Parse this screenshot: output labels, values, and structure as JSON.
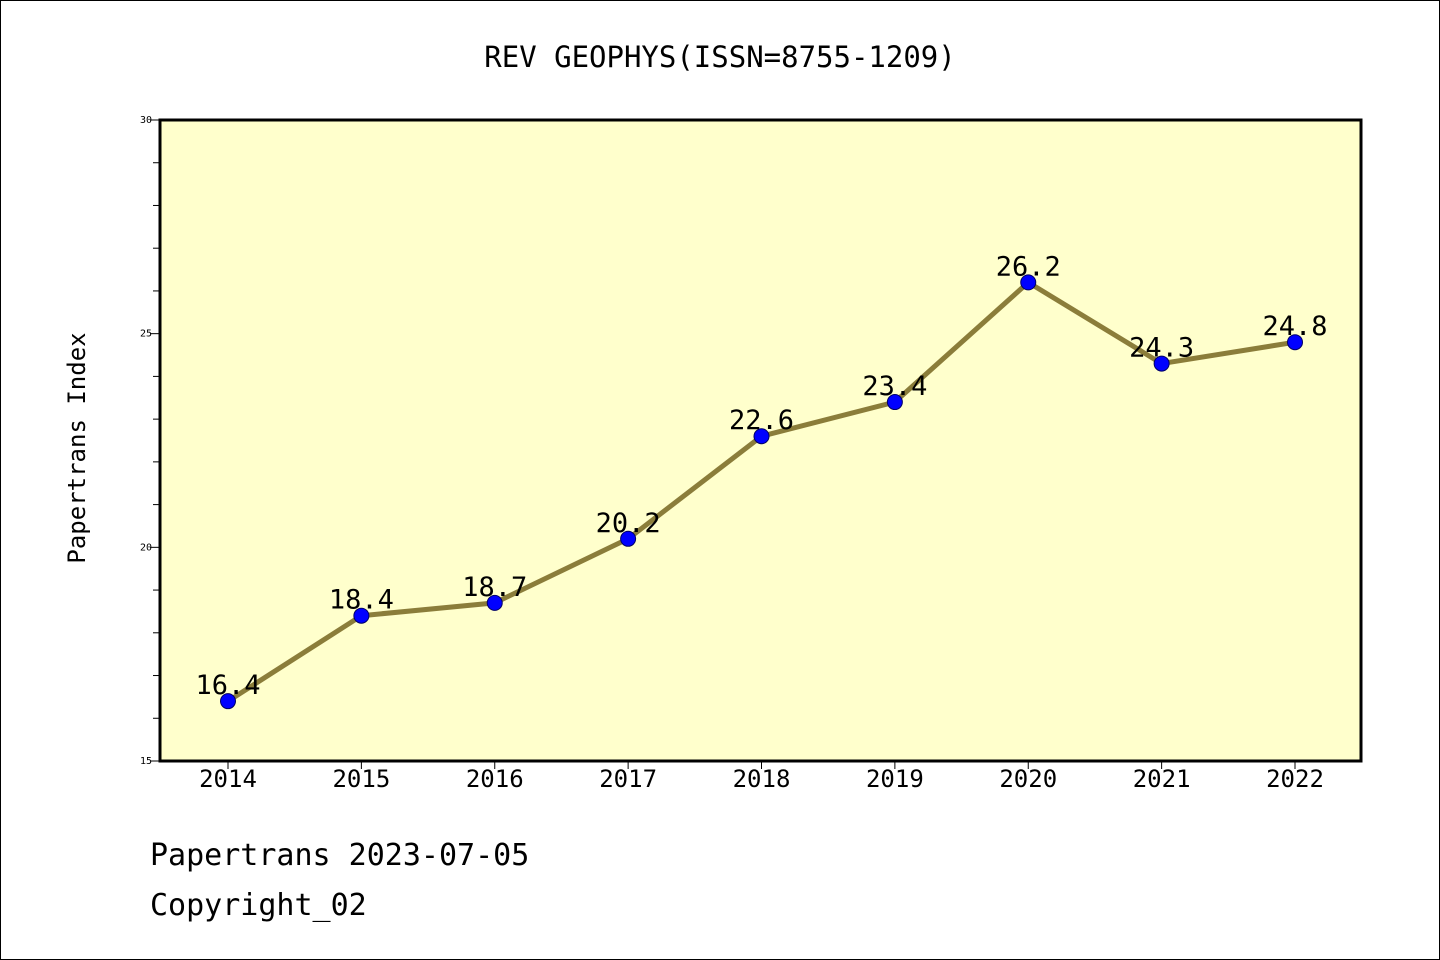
{
  "chart_data": {
    "type": "line",
    "title": "REV GEOPHYS(ISSN=8755-1209)",
    "xlabel": "",
    "ylabel": "Papertrans Index",
    "categories": [
      "2014",
      "2015",
      "2016",
      "2017",
      "2018",
      "2019",
      "2020",
      "2021",
      "2022"
    ],
    "series": [
      {
        "values": [
          16.4,
          18.4,
          18.7,
          20.2,
          22.6,
          23.4,
          26.2,
          24.3,
          24.8
        ]
      }
    ],
    "data_labels": [
      "16.4",
      "18.4",
      "18.7",
      "20.2",
      "22.6",
      "23.4",
      "26.2",
      "24.3",
      "24.8"
    ],
    "ylim": [
      15,
      30
    ],
    "y_major_ticks": [
      15,
      20,
      25,
      30
    ],
    "y_major_tick_labels": [
      "15",
      "20",
      "25",
      "30"
    ],
    "y_minor_step": 1,
    "grid": false,
    "colors": {
      "plot_background": "#ffffcc",
      "line": "#8b7d3a",
      "marker": "#0000ff"
    }
  },
  "footer": {
    "date_line": "Papertrans 2023-07-05",
    "copyright": "Copyright_02"
  }
}
